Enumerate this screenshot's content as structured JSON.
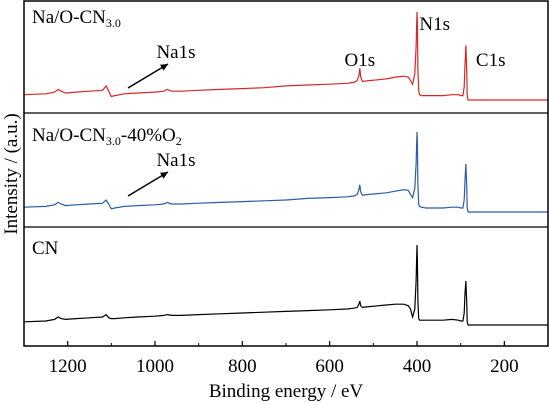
{
  "chart_data": {
    "type": "line",
    "xlabel": "Binding energy / eV",
    "ylabel": "Intensity / (a.u.)",
    "xlim": [
      1300,
      100
    ],
    "x_reversed": true,
    "x_ticks": [
      1200,
      1000,
      800,
      600,
      400,
      200
    ],
    "y_ticks_shown": false,
    "grid": false,
    "legend": "none",
    "panels": [
      {
        "label": "Na/O-CN3.0",
        "label_parts": [
          {
            "text": "Na/O-CN",
            "sub": false
          },
          {
            "text": "3.0",
            "sub": true
          }
        ],
        "color": "#d62728",
        "annotations": [
          {
            "text": "Na1s",
            "x": 1071,
            "arrow": true
          },
          {
            "text": "O1s",
            "x": 531,
            "arrow": false
          },
          {
            "text": "N1s",
            "x": 399,
            "arrow": false
          },
          {
            "text": "C1s",
            "x": 288,
            "arrow": false
          }
        ],
        "series": {
          "name": "Na/O-CN3.0",
          "x": [
            1300,
            1250,
            1230,
            1222,
            1215,
            1205,
            1180,
            1150,
            1120,
            1112,
            1106,
            1100,
            1092,
            1070,
            1040,
            1000,
            980,
            972,
            962,
            940,
            900,
            850,
            800,
            750,
            700,
            650,
            600,
            560,
            545,
            537,
            533,
            531,
            529,
            525,
            510,
            490,
            470,
            450,
            430,
            420,
            415,
            410,
            405,
            402,
            400,
            399,
            398,
            396,
            394,
            390,
            380,
            360,
            340,
            320,
            305,
            300,
            295,
            292,
            290,
            288,
            286,
            285,
            283,
            280,
            260,
            240,
            220,
            200,
            180,
            160,
            140,
            120,
            100
          ],
          "y": [
            0.06,
            0.07,
            0.09,
            0.12,
            0.1,
            0.08,
            0.09,
            0.1,
            0.11,
            0.16,
            0.1,
            0.04,
            0.05,
            0.07,
            0.08,
            0.09,
            0.1,
            0.12,
            0.1,
            0.1,
            0.11,
            0.12,
            0.13,
            0.14,
            0.16,
            0.17,
            0.18,
            0.19,
            0.2,
            0.22,
            0.28,
            0.36,
            0.26,
            0.21,
            0.22,
            0.23,
            0.24,
            0.26,
            0.27,
            0.26,
            0.22,
            0.18,
            0.3,
            0.6,
            1.0,
            0.85,
            0.35,
            0.1,
            0.06,
            0.05,
            0.05,
            0.05,
            0.05,
            0.06,
            0.06,
            0.05,
            0.05,
            0.15,
            0.4,
            0.62,
            0.3,
            0.05,
            0.0,
            0.0,
            0.0,
            0.0,
            0.0,
            0.0,
            0.0,
            0.0,
            0.0,
            0.0,
            0.0
          ]
        }
      },
      {
        "label": "Na/O-CN3.0-40%O2",
        "label_parts": [
          {
            "text": "Na/O-CN",
            "sub": false
          },
          {
            "text": "3.0",
            "sub": true
          },
          {
            "text": "-40%O",
            "sub": false
          },
          {
            "text": "2",
            "sub": true
          }
        ],
        "color": "#2a5caa",
        "annotations": [
          {
            "text": "Na1s",
            "x": 1071,
            "arrow": true
          }
        ],
        "series": {
          "name": "Na/O-CN3.0-40%O2",
          "x": [
            1300,
            1250,
            1230,
            1222,
            1215,
            1205,
            1180,
            1150,
            1120,
            1112,
            1106,
            1100,
            1092,
            1070,
            1040,
            1000,
            980,
            972,
            962,
            940,
            900,
            850,
            800,
            750,
            700,
            650,
            600,
            560,
            545,
            537,
            533,
            531,
            529,
            525,
            510,
            490,
            470,
            450,
            430,
            420,
            415,
            410,
            405,
            402,
            400,
            399,
            398,
            396,
            394,
            390,
            380,
            360,
            340,
            320,
            305,
            300,
            295,
            292,
            290,
            288,
            286,
            285,
            283,
            280,
            260,
            240,
            220,
            200,
            180,
            160,
            140,
            120,
            100
          ],
          "y": [
            0.06,
            0.07,
            0.09,
            0.12,
            0.1,
            0.08,
            0.09,
            0.1,
            0.11,
            0.15,
            0.1,
            0.04,
            0.05,
            0.07,
            0.08,
            0.09,
            0.1,
            0.12,
            0.1,
            0.1,
            0.11,
            0.12,
            0.13,
            0.14,
            0.15,
            0.17,
            0.18,
            0.19,
            0.2,
            0.22,
            0.28,
            0.34,
            0.25,
            0.21,
            0.22,
            0.23,
            0.24,
            0.26,
            0.28,
            0.27,
            0.22,
            0.18,
            0.3,
            0.6,
            1.0,
            0.85,
            0.35,
            0.1,
            0.07,
            0.06,
            0.05,
            0.05,
            0.05,
            0.06,
            0.06,
            0.05,
            0.05,
            0.15,
            0.4,
            0.6,
            0.3,
            0.05,
            0.0,
            0.0,
            0.0,
            0.0,
            0.0,
            0.0,
            0.0,
            0.0,
            0.0,
            0.0,
            0.0
          ]
        }
      },
      {
        "label": "CN",
        "label_parts": [
          {
            "text": "CN",
            "sub": false
          }
        ],
        "color": "#000000",
        "annotations": [],
        "series": {
          "name": "CN",
          "x": [
            1300,
            1250,
            1230,
            1222,
            1215,
            1205,
            1180,
            1150,
            1120,
            1112,
            1106,
            1100,
            1092,
            1070,
            1040,
            1000,
            980,
            972,
            962,
            940,
            900,
            850,
            800,
            750,
            700,
            650,
            600,
            560,
            545,
            537,
            533,
            531,
            529,
            525,
            510,
            490,
            470,
            450,
            430,
            420,
            415,
            410,
            405,
            402,
            400,
            399,
            398,
            396,
            394,
            390,
            380,
            360,
            340,
            320,
            305,
            300,
            295,
            292,
            290,
            288,
            286,
            285,
            283,
            280,
            260,
            240,
            220,
            200,
            180,
            160,
            140,
            120,
            100
          ],
          "y": [
            0.04,
            0.05,
            0.07,
            0.1,
            0.08,
            0.07,
            0.08,
            0.09,
            0.1,
            0.13,
            0.09,
            0.08,
            0.08,
            0.09,
            0.1,
            0.11,
            0.12,
            0.13,
            0.12,
            0.12,
            0.13,
            0.14,
            0.15,
            0.16,
            0.17,
            0.18,
            0.19,
            0.2,
            0.21,
            0.22,
            0.26,
            0.3,
            0.24,
            0.22,
            0.23,
            0.24,
            0.25,
            0.26,
            0.26,
            0.24,
            0.2,
            0.1,
            0.2,
            0.55,
            1.0,
            0.8,
            0.3,
            0.08,
            0.06,
            0.06,
            0.06,
            0.06,
            0.06,
            0.07,
            0.06,
            0.05,
            0.05,
            0.15,
            0.4,
            0.55,
            0.25,
            0.04,
            0.0,
            0.0,
            0.0,
            0.0,
            0.0,
            0.0,
            0.0,
            0.0,
            0.0,
            0.0,
            0.0
          ]
        }
      }
    ]
  }
}
